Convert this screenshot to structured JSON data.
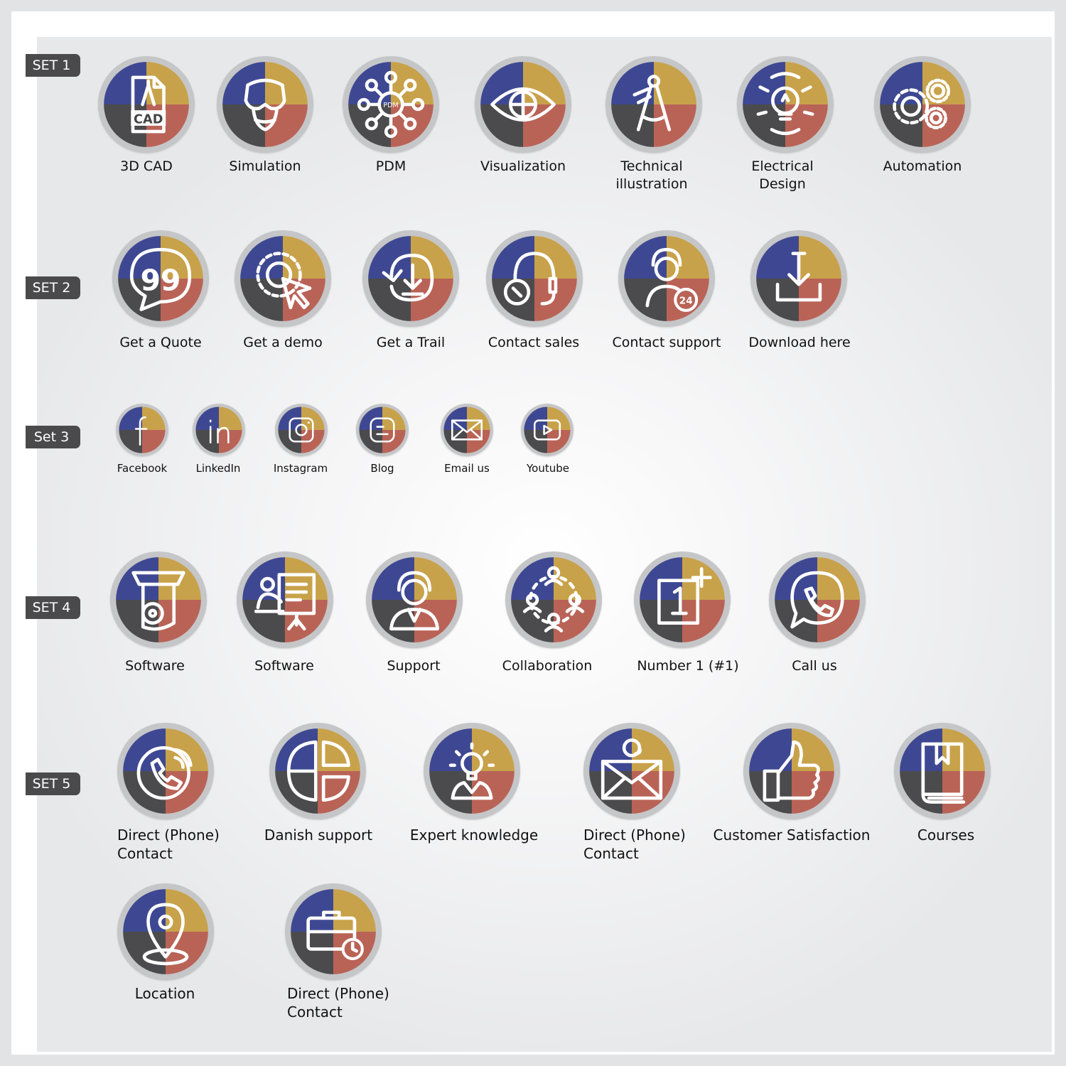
{
  "colors": {
    "blue": "#3e4892",
    "gold": "#c8a24a",
    "red": "#b96357",
    "dark": "#4b4b4d",
    "ring": "#c5c6c8",
    "line": "#ffffff",
    "tag": "#4a4a4c"
  },
  "sets": [
    {
      "label": "SET 1",
      "items": [
        {
          "icon": "cad-file-icon",
          "lines": [
            "3D CAD"
          ]
        },
        {
          "icon": "vr-headset-icon",
          "lines": [
            "Simulation"
          ]
        },
        {
          "icon": "pdm-network-icon",
          "lines": [
            "PDM"
          ],
          "badge": "PDM"
        },
        {
          "icon": "eye-icon",
          "lines": [
            "Visualization"
          ]
        },
        {
          "icon": "compass-drafting-icon",
          "lines": [
            "Technical",
            "illustration"
          ]
        },
        {
          "icon": "lightbulb-circuit-icon",
          "lines": [
            "Electrical",
            "Design"
          ]
        },
        {
          "icon": "gears-icon",
          "lines": [
            "Automation"
          ]
        }
      ]
    },
    {
      "label": "SET 2",
      "items": [
        {
          "icon": "quote-bubble-icon",
          "lines": [
            "Get a Quote"
          ]
        },
        {
          "icon": "cursor-click-icon",
          "lines": [
            "Get a demo"
          ]
        },
        {
          "icon": "download-arrow-icon",
          "lines": [
            "Get a Trail"
          ]
        },
        {
          "icon": "headset-tag-icon",
          "lines": [
            "Contact sales"
          ]
        },
        {
          "icon": "support-agent-24-icon",
          "lines": [
            "Contact support"
          ],
          "badge": "24"
        },
        {
          "icon": "download-tray-icon",
          "lines": [
            "Download here"
          ]
        }
      ]
    },
    {
      "label": "Set 3",
      "items": [
        {
          "icon": "facebook-icon",
          "lines": [
            "Facebook"
          ]
        },
        {
          "icon": "linkedin-icon",
          "lines": [
            "LinkedIn"
          ]
        },
        {
          "icon": "instagram-icon",
          "lines": [
            "Instagram"
          ]
        },
        {
          "icon": "blogger-icon",
          "lines": [
            "Blog"
          ]
        },
        {
          "icon": "envelope-icon",
          "lines": [
            "Email us"
          ]
        },
        {
          "icon": "youtube-icon",
          "lines": [
            "Youtube"
          ]
        }
      ]
    },
    {
      "label": "SET 4",
      "items": [
        {
          "icon": "software-box-icon",
          "lines": [
            "Software"
          ]
        },
        {
          "icon": "presentation-board-icon",
          "lines": [
            "Software"
          ]
        },
        {
          "icon": "support-person-icon",
          "lines": [
            "Support"
          ]
        },
        {
          "icon": "collaboration-people-icon",
          "lines": [
            "Collaboration"
          ]
        },
        {
          "icon": "number-one-icon",
          "lines": [
            "Number 1 (#1)"
          ]
        },
        {
          "icon": "whatsapp-phone-icon",
          "lines": [
            "Call us"
          ]
        }
      ]
    },
    {
      "label": "SET 5",
      "items": [
        {
          "icon": "phone-ring-icon",
          "lines": [
            "Direct (Phone)",
            "Contact"
          ]
        },
        {
          "icon": "danish-flag-icon",
          "lines": [
            "Danish support"
          ]
        },
        {
          "icon": "idea-person-icon",
          "lines": [
            "Expert knowledge"
          ]
        },
        {
          "icon": "email-at-icon",
          "lines": [
            "Direct (Phone)",
            "Contact"
          ]
        },
        {
          "icon": "thumbs-up-icon",
          "lines": [
            "Customer Satisfaction"
          ]
        },
        {
          "icon": "book-icon",
          "lines": [
            "Courses"
          ]
        },
        {
          "icon": "location-pin-icon",
          "lines": [
            "Location"
          ]
        },
        {
          "icon": "briefcase-clock-icon",
          "lines": [
            "Direct (Phone)",
            "Contact"
          ]
        }
      ]
    }
  ]
}
